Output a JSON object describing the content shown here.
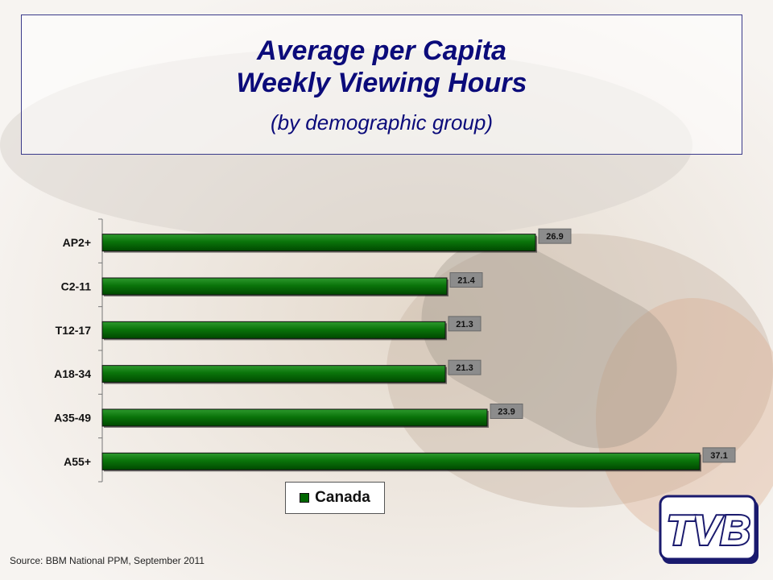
{
  "title": {
    "line1": "Average per Capita",
    "line2": "Weekly Viewing Hours",
    "subtitle": "(by demographic group)"
  },
  "source": "Source:  BBM National PPM, September 2011",
  "logo_text": "TVB",
  "colors": {
    "bar_fill": "#006600",
    "bar_highlight": "#2e9a2e",
    "value_label_bg": "#8c8c8c",
    "title": "#0b0b7a"
  },
  "chart_data": {
    "type": "bar",
    "orientation": "horizontal",
    "categories": [
      "AP2+",
      "C2-11",
      "T12-17",
      "A18-34",
      "A35-49",
      "A55+"
    ],
    "series": [
      {
        "name": "Canada",
        "values": [
          26.9,
          21.4,
          21.3,
          21.3,
          23.9,
          37.1
        ]
      }
    ],
    "value_labels": [
      "26.9",
      "21.4",
      "21.3",
      "21.3",
      "23.9",
      "37.1"
    ],
    "xlim": [
      0,
      40
    ],
    "grid": false,
    "legend_position": "bottom"
  }
}
